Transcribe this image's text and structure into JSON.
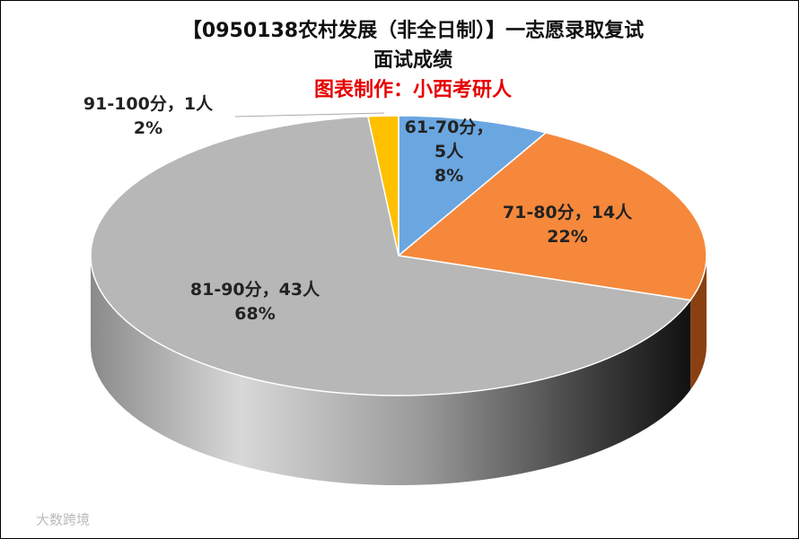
{
  "chart_data": {
    "type": "pie3d",
    "title": [
      "【0950138农村发展（非全日制）】一志愿录取复试",
      "面试成绩"
    ],
    "subtitle": "图表制作：小西考研人",
    "categories": [
      "61-70分",
      "71-80分",
      "81-90分",
      "91-100分"
    ],
    "label_separator": "，",
    "values": [
      5,
      14,
      43,
      1
    ],
    "value_labels": [
      "5人",
      "14人",
      "43人",
      "1人"
    ],
    "percentages": [
      8,
      22,
      68,
      2
    ],
    "percentage_labels": [
      "8%",
      "22%",
      "68%",
      "2%"
    ],
    "colors": [
      "#6aa6e0",
      "#f5883b",
      "#b7b7b7",
      "#ffc000"
    ],
    "watermark": "大数跨境"
  }
}
